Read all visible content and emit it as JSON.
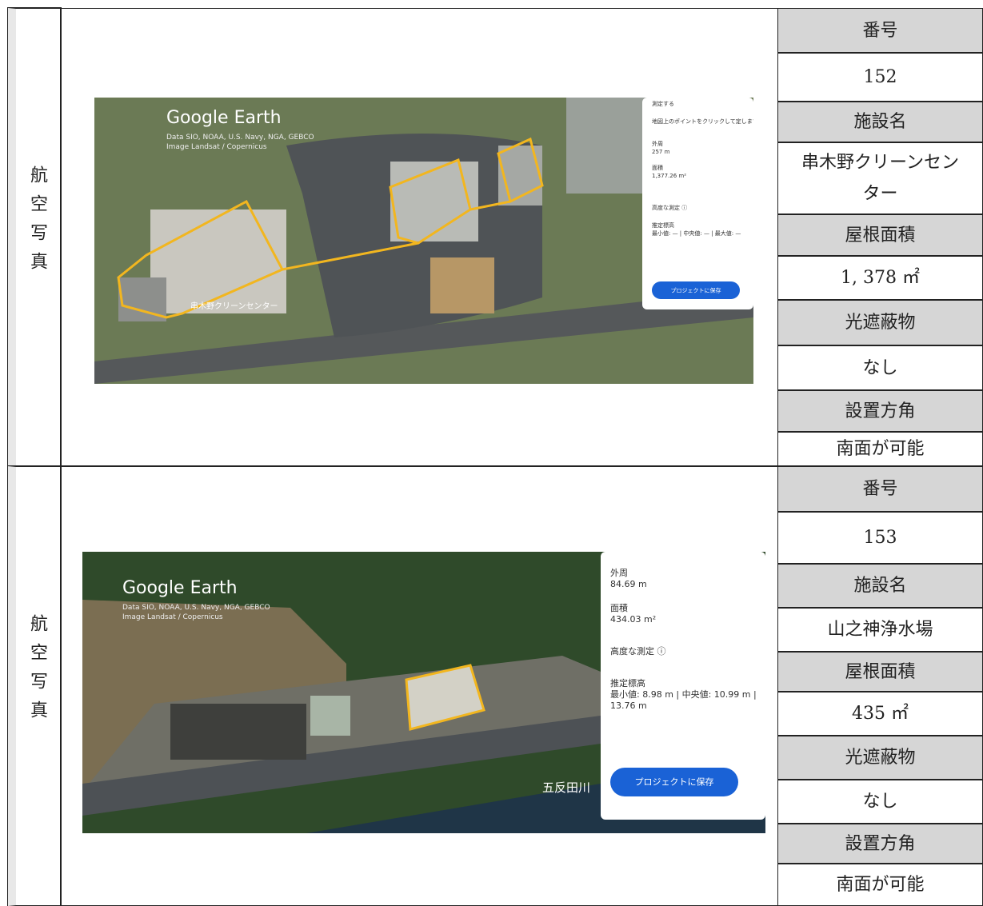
{
  "rows": [
    {
      "label": "航空写真",
      "fields": [
        [
          "番号",
          "152"
        ],
        [
          "施設名",
          "串木野クリーンセンター"
        ],
        [
          "屋根面積",
          "1, 378 ㎡"
        ],
        [
          "光遮蔽物",
          "なし"
        ],
        [
          "設置方角",
          "南面が可能"
        ]
      ],
      "photo": {
        "brand": "Google Earth",
        "credit1": "Data SIO, NOAA, U.S. Navy, NGA, GEBCO",
        "credit2": "Image Landsat / Copernicus",
        "place": "串木野クリーンセンター",
        "measure": "測定する",
        "hint": "地図上のポイントをクリックして定します",
        "perimeter_label": "外周",
        "perimeter": "257 m",
        "area_label": "面積",
        "area": "1,377.26 m²",
        "advanced": "高度な測定 ⓘ",
        "elev_label": "推定標高",
        "elev": "最小値: — | 中央値: — | 最大値: —",
        "save": "プロジェクトに保存"
      }
    },
    {
      "label": "航空写真",
      "fields": [
        [
          "番号",
          "153"
        ],
        [
          "施設名",
          "山之神浄水場"
        ],
        [
          "屋根面積",
          "435 ㎡"
        ],
        [
          "光遮蔽物",
          "なし"
        ],
        [
          "設置方角",
          "南面が可能"
        ]
      ],
      "photo": {
        "brand": "Google Earth",
        "credit1": "Data SIO, NOAA, U.S. Navy, NGA, GEBCO",
        "credit2": "Image Landsat / Copernicus",
        "river": "五反田川",
        "perimeter_label": "外周",
        "perimeter": "84.69 m",
        "area_label": "面積",
        "area": "434.03 m²",
        "advanced": "高度な測定 ⓘ",
        "elev_label": "推定標高",
        "elev": "最小値: 8.98 m | 中央値: 10.99 m |",
        "elev2": "13.76 m",
        "save": "プロジェクトに保存"
      }
    }
  ]
}
